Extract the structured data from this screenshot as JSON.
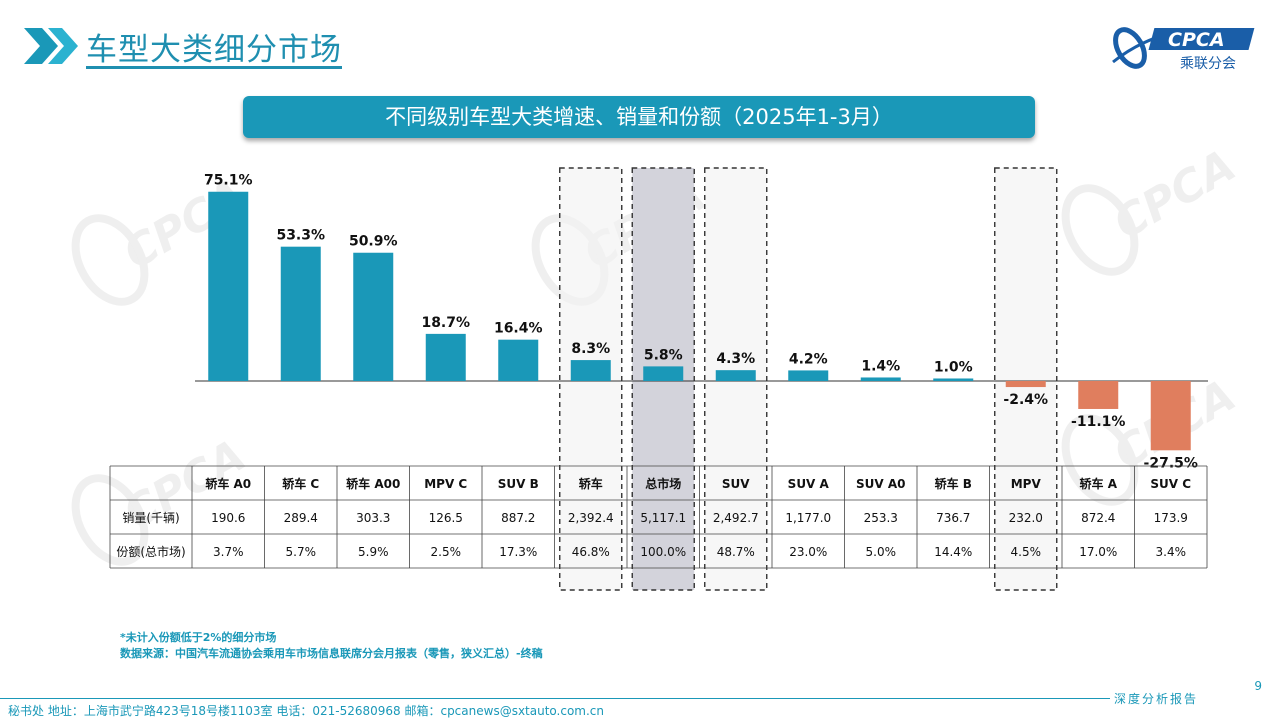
{
  "page": {
    "title": "车型大类细分市场",
    "chart_title": "不同级别车型大类增速、销量和份额（2025年1-3月）",
    "logo_text": "CPCA",
    "logo_subtext": "乘联分会",
    "page_number": "9",
    "footnotes": [
      "*未计入份额低于2%的细分市场",
      "数据来源：中国汽车流通协会乘用车市场信息联席分会月报表（零售，狭义汇总）-终稿"
    ],
    "footer": "秘书处   地址：上海市武宁路423号18号楼1103室   电话：021-52680968   邮箱：cpcanews@sxtauto.com.cn",
    "footer_brand": "深度分析报告",
    "colors": {
      "positive": "#1a98b8",
      "negative": "#e07e5e",
      "highlight": "#d3d3db",
      "accent": "#1a98b8"
    }
  },
  "chart_data": {
    "type": "bar",
    "categories": [
      "轿车 A0",
      "轿车 C",
      "轿车 A00",
      "MPV C",
      "SUV B",
      "轿车",
      "总市场",
      "SUV",
      "SUV A",
      "SUV A0",
      "轿车 B",
      "MPV",
      "轿车 A",
      "SUV C"
    ],
    "growth": [
      75.1,
      53.3,
      50.9,
      18.7,
      16.4,
      8.3,
      5.8,
      4.3,
      4.2,
      1.4,
      1.0,
      -2.4,
      -11.1,
      -27.5
    ],
    "growth_labels": [
      "75.1%",
      "53.3%",
      "50.9%",
      "18.7%",
      "16.4%",
      "8.3%",
      "5.8%",
      "4.3%",
      "4.2%",
      "1.4%",
      "1.0%",
      "-2.4%",
      "-11.1%",
      "-27.5%"
    ],
    "highlighted": [
      "轿车",
      "总市场",
      "SUV",
      "MPV"
    ],
    "shaded": [
      "总市场"
    ],
    "table": {
      "row_labels": [
        "销量(千辆)",
        "份额(总市场)"
      ],
      "sales": [
        "190.6",
        "289.4",
        "303.3",
        "126.5",
        "887.2",
        "2,392.4",
        "5,117.1",
        "2,492.7",
        "1,177.0",
        "253.3",
        "736.7",
        "232.0",
        "872.4",
        "173.9"
      ],
      "share": [
        "3.7%",
        "5.7%",
        "5.9%",
        "2.5%",
        "17.3%",
        "46.8%",
        "100.0%",
        "48.7%",
        "23.0%",
        "5.0%",
        "14.4%",
        "4.5%",
        "17.0%",
        "3.4%"
      ]
    },
    "ylim": [
      -30,
      80
    ],
    "grid": false,
    "legend": "none"
  }
}
